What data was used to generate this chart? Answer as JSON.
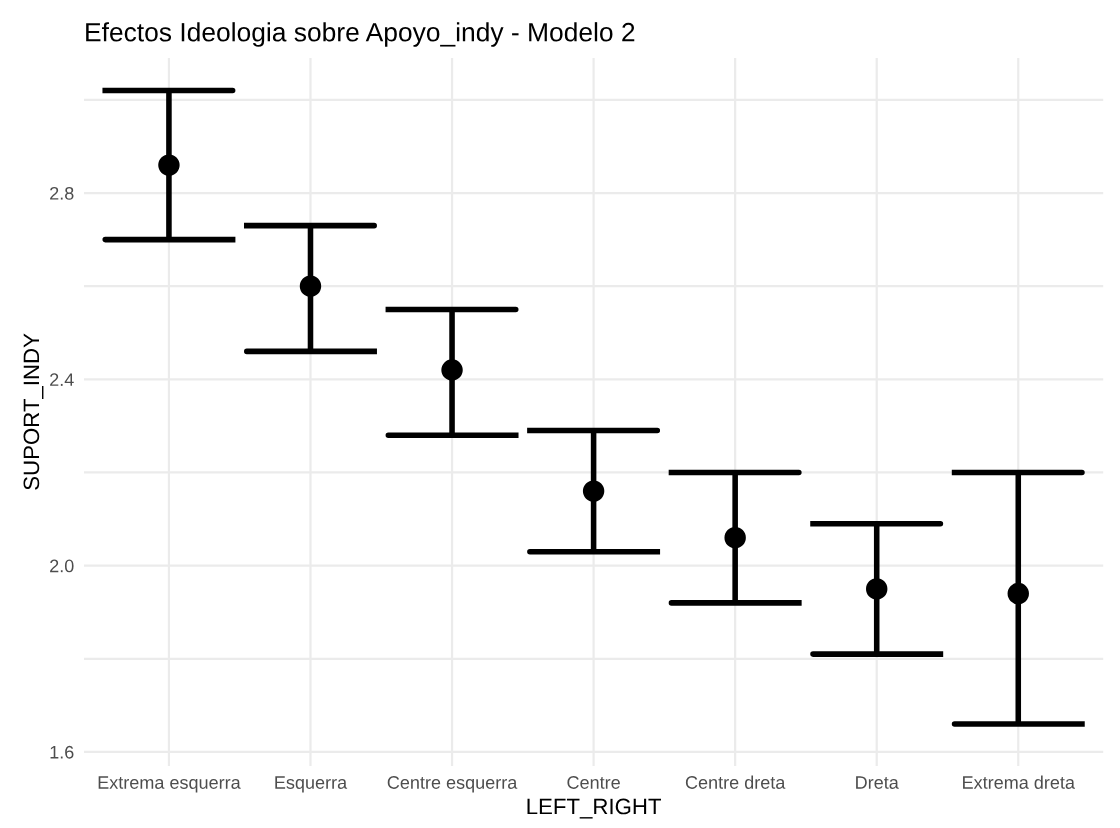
{
  "chart_data": {
    "type": "scatter",
    "title": "Efectos Ideologia sobre Apoyo_indy - Modelo 2",
    "xlabel": "LEFT_RIGHT",
    "ylabel": "SUPORT_INDY",
    "categories": [
      "Extrema esquerra",
      "Esquerra",
      "Centre esquerra",
      "Centre",
      "Centre dreta",
      "Dreta",
      "Extrema dreta"
    ],
    "values": [
      2.86,
      2.6,
      2.42,
      2.16,
      2.06,
      1.95,
      1.94
    ],
    "errors": [
      [
        2.7,
        3.02
      ],
      [
        2.46,
        2.73
      ],
      [
        2.28,
        2.55
      ],
      [
        2.03,
        2.29
      ],
      [
        1.92,
        2.2
      ],
      [
        1.81,
        2.09
      ],
      [
        1.66,
        2.2
      ]
    ],
    "color": "#000000",
    "marker": "circle",
    "grid": true,
    "ylim": [
      1.57,
      3.09
    ],
    "yticks": [
      1.6,
      {
        "value": 1.8,
        "label": null
      },
      {
        "value": 2,
        "label": "2.0"
      },
      {
        "value": 2.2,
        "label": null
      },
      2.4,
      {
        "value": 2.6,
        "label": null
      },
      2.8,
      {
        "value": 3.0,
        "label": null
      }
    ]
  }
}
